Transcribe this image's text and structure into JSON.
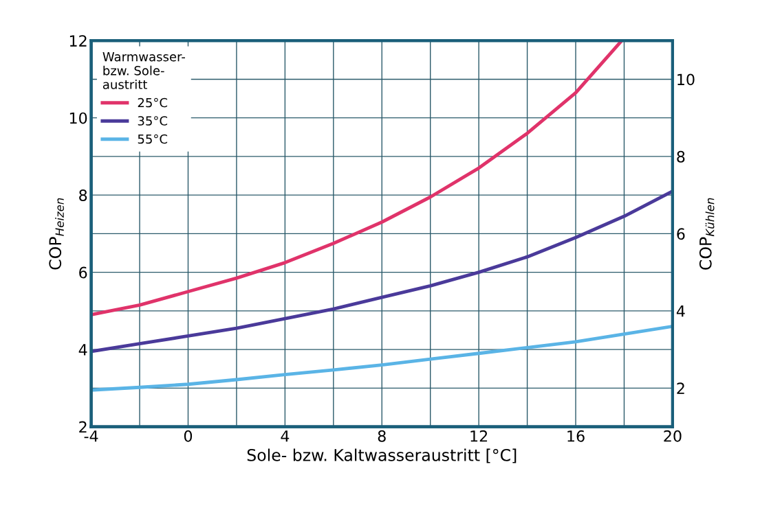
{
  "chart_data": {
    "type": "line",
    "xlabel": "Sole- bzw. Kaltwasseraustritt [°C]",
    "ylabel": "COP$_{Heizen}$",
    "y2label": "COP$_{Kühlen}$",
    "legend_title": "Warmwasser-\nbzw. Sole-\naustritt",
    "xlim": [
      -4,
      20
    ],
    "xticks": [
      -4,
      {
        "value": -2,
        "label": null
      },
      0,
      {
        "value": 2,
        "label": null
      },
      4,
      {
        "value": 6,
        "label": null
      },
      8,
      {
        "value": 10,
        "label": null
      },
      12,
      {
        "value": 14,
        "label": null
      },
      16,
      {
        "value": 18,
        "label": null
      },
      20
    ],
    "ylim": [
      2,
      12
    ],
    "yticks": [
      2,
      {
        "value": 3,
        "label": null
      },
      4,
      {
        "value": 5,
        "label": null
      },
      6,
      {
        "value": 7,
        "label": null
      },
      8,
      {
        "value": 9,
        "label": null
      },
      10,
      {
        "value": 11,
        "label": null
      },
      12
    ],
    "y2lim": [
      1,
      11
    ],
    "y2ticks": [
      2,
      4,
      6,
      8,
      10
    ],
    "grid": true,
    "legend": "top left",
    "line_style": "solid",
    "marker": "none",
    "series": [
      {
        "name": "25°C",
        "color": "#e0336a",
        "x": [
          -4,
          -2,
          0,
          2,
          4,
          6,
          8,
          10,
          12,
          14,
          16,
          17.9
        ],
        "values": [
          4.9,
          5.15,
          5.5,
          5.85,
          6.25,
          6.75,
          7.3,
          7.95,
          8.7,
          9.6,
          10.65,
          12
        ]
      },
      {
        "name": "35°C",
        "color": "#4a3a9a",
        "x": [
          -4,
          -2,
          0,
          2,
          4,
          6,
          8,
          10,
          12,
          14,
          16,
          18,
          20
        ],
        "values": [
          3.95,
          4.15,
          4.35,
          4.55,
          4.8,
          5.05,
          5.35,
          5.65,
          6.0,
          6.4,
          6.9,
          7.45,
          8.1
        ]
      },
      {
        "name": "55°C",
        "color": "#5ab4e6",
        "x": [
          -4,
          -2,
          0,
          2,
          4,
          6,
          8,
          10,
          12,
          14,
          16,
          18,
          20
        ],
        "values": [
          2.95,
          3.02,
          3.1,
          3.22,
          3.35,
          3.47,
          3.6,
          3.75,
          3.9,
          4.05,
          4.2,
          4.4,
          4.6
        ]
      }
    ]
  }
}
